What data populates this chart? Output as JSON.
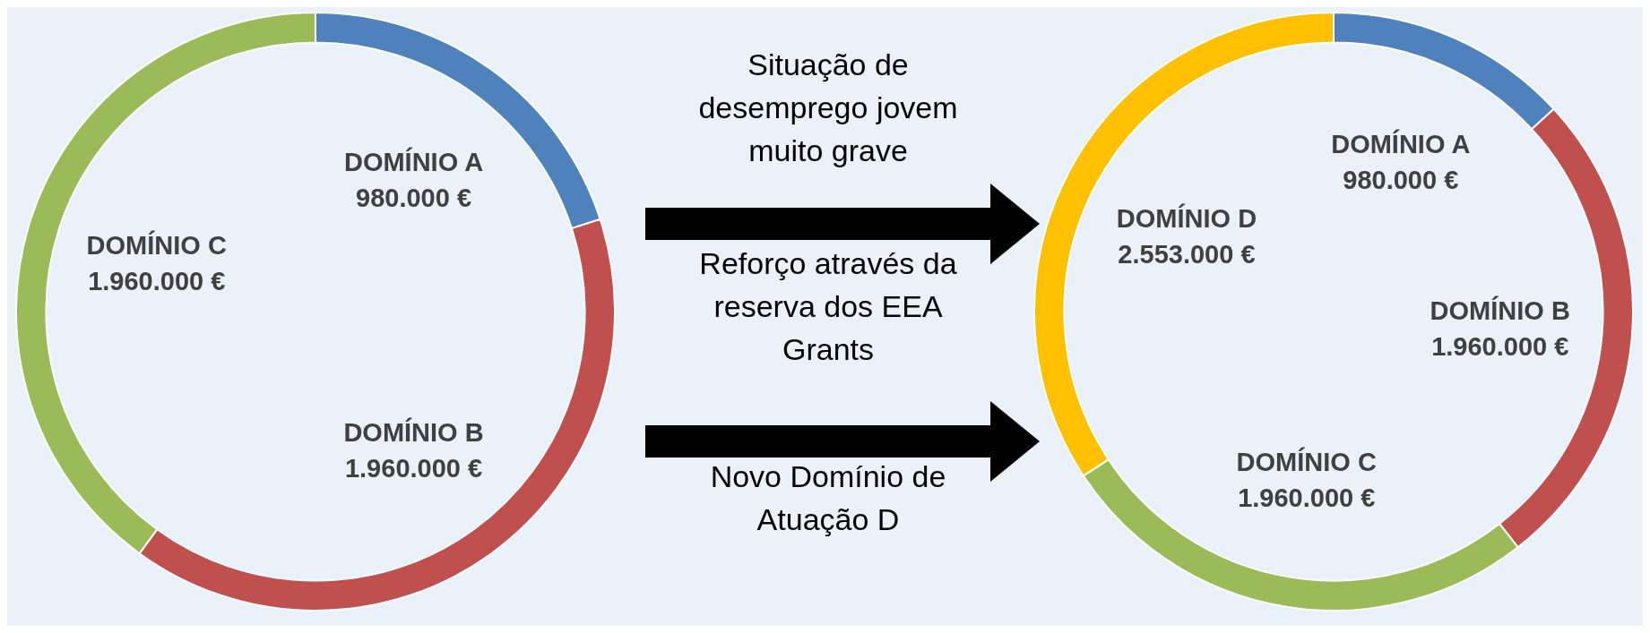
{
  "chart_data": [
    {
      "type": "donut",
      "categories": [
        "DOMÍNIO A",
        "DOMÍNIO B",
        "DOMÍNIO C"
      ],
      "values": [
        980000,
        1960000,
        1960000
      ],
      "colors": [
        "#4f81bd",
        "#c0504d",
        "#9bbb59"
      ],
      "value_labels": [
        "980.000 €",
        "1.960.000 €",
        "1.960.000 €"
      ]
    },
    {
      "type": "other",
      "annotations": [
        "Situação de desemprego jovem muito grave",
        "Reforço através da reserva dos EEA Grants",
        "Novo Domínio de Atuação D"
      ]
    },
    {
      "type": "donut",
      "categories": [
        "DOMÍNIO A",
        "DOMÍNIO B",
        "DOMÍNIO C",
        "DOMÍNIO D"
      ],
      "values": [
        980000,
        1960000,
        1960000,
        2553000
      ],
      "colors": [
        "#4f81bd",
        "#c0504d",
        "#9bbb59",
        "#ffc000"
      ],
      "value_labels": [
        "980.000 €",
        "1.960.000 €",
        "1.960.000 €",
        "2.553.000 €"
      ]
    }
  ]
}
